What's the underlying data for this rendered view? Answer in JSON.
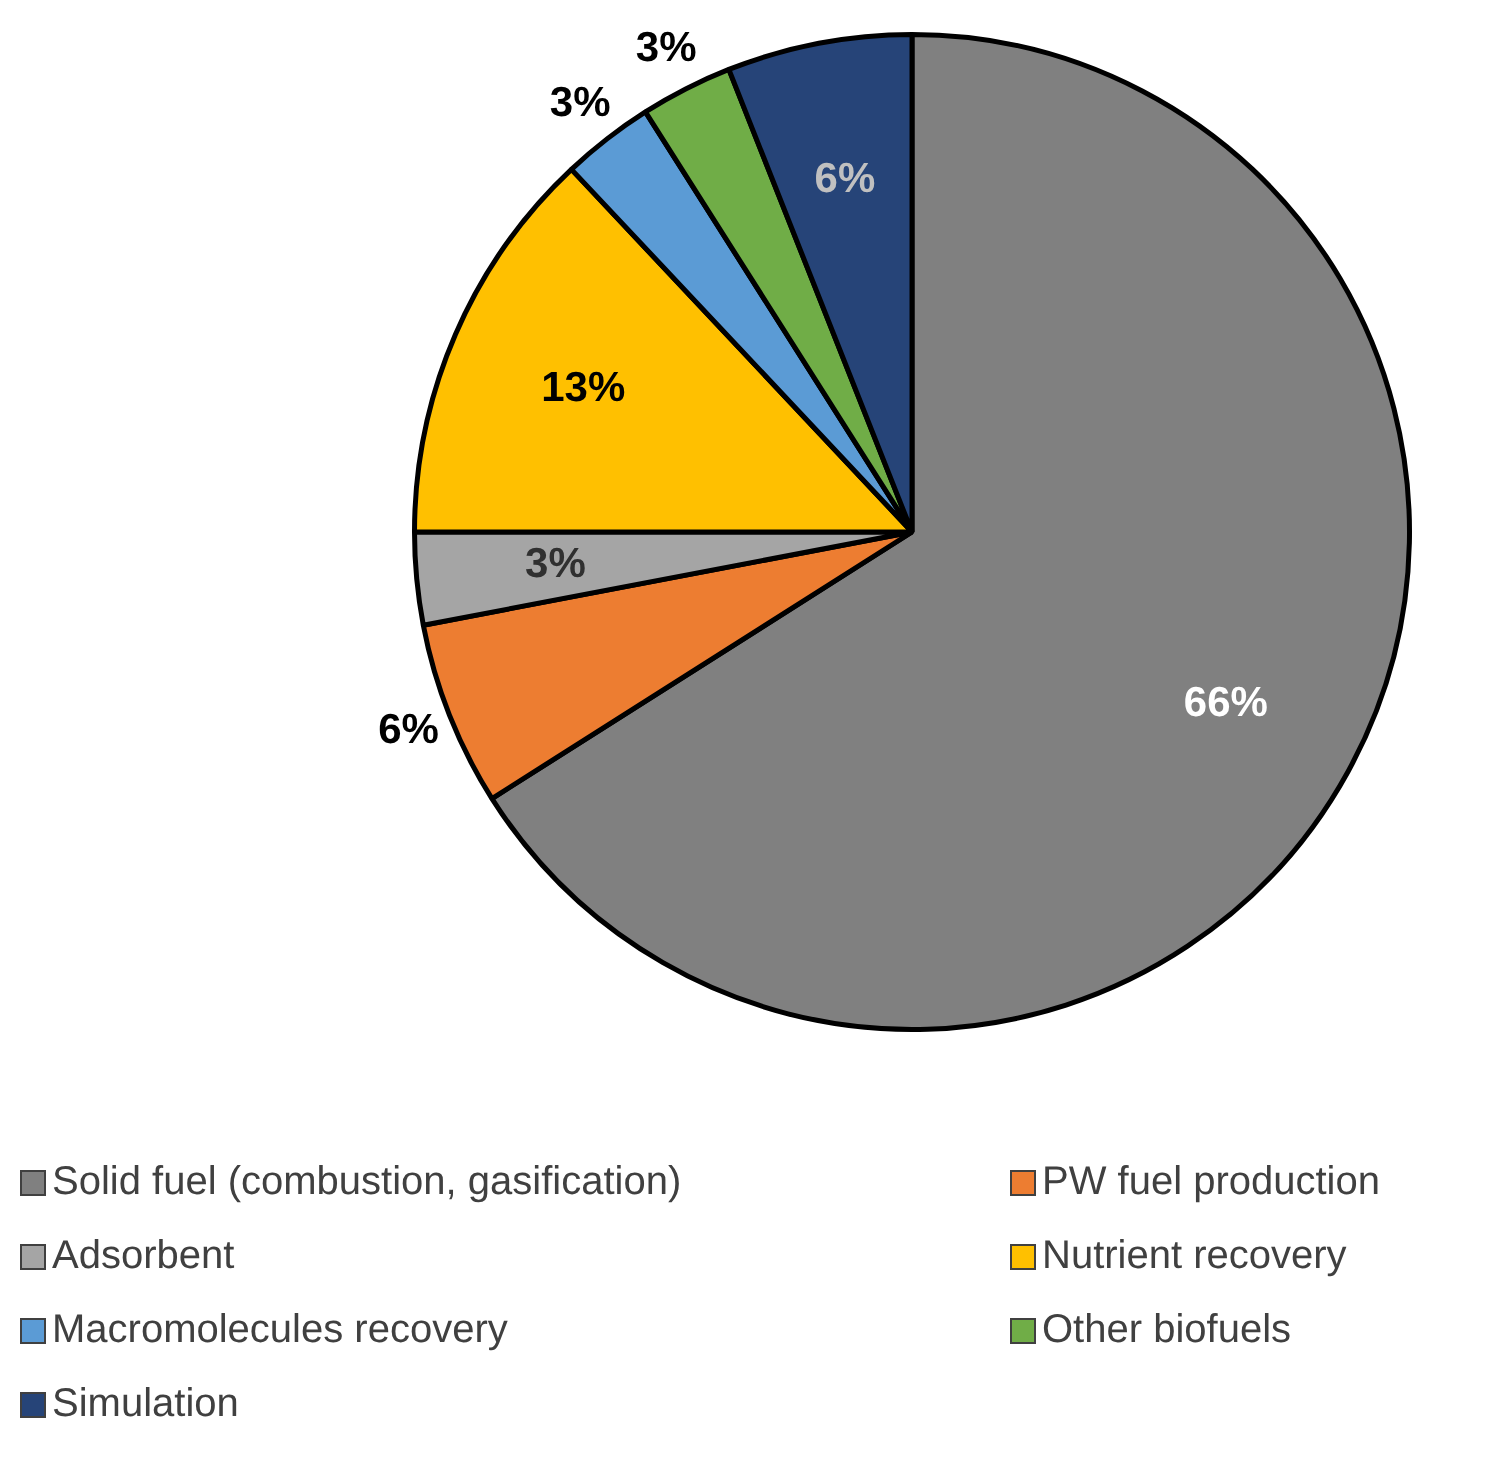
{
  "chart_data": {
    "type": "pie",
    "categories": [
      "Solid fuel (combustion, gasification)",
      "PW fuel production",
      "Adsorbent",
      "Nutrient recovery",
      "Macromolecules recovery",
      "Other biofuels",
      "Simulation"
    ],
    "values": [
      66,
      6,
      3,
      13,
      3,
      3,
      6
    ],
    "colors": [
      "#808080",
      "#ed7d31",
      "#a5a5a5",
      "#ffc000",
      "#5b9bd5",
      "#70ad47",
      "#264478"
    ],
    "value_labels": [
      "66%",
      "6%",
      "3%",
      "13%",
      "3%",
      "3%",
      "6%"
    ],
    "legend": "bottom"
  }
}
